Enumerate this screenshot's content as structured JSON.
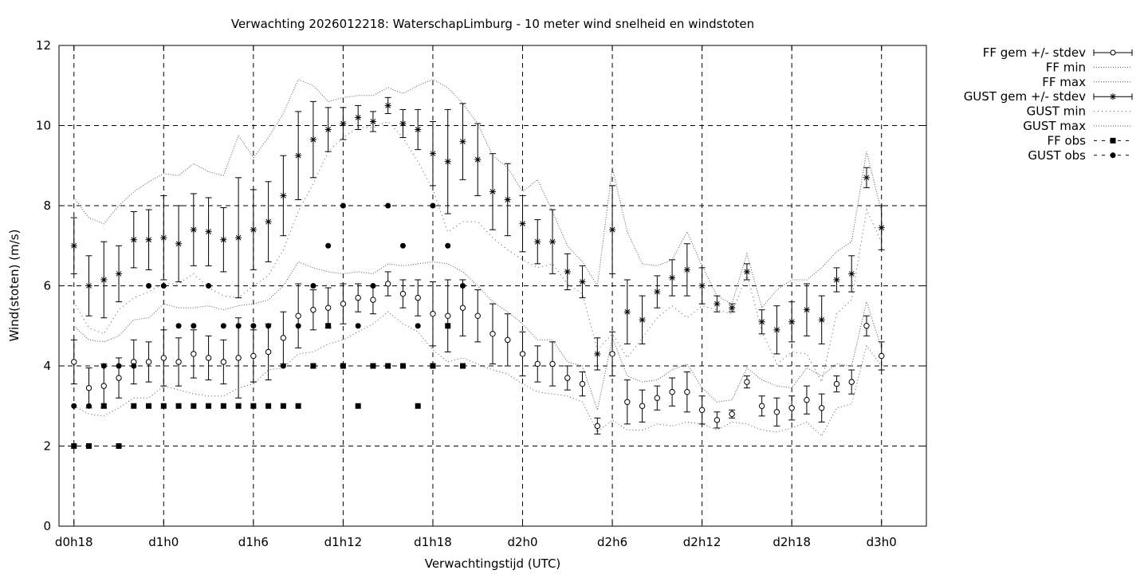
{
  "chart_data": {
    "type": "scatter",
    "title": "Verwachting 2026012218: WaterschapLimburg - 10 meter wind snelheid en windstoten",
    "xlabel": "Verwachtingstijd (UTC)",
    "ylabel": "Wind(stoten) (m/s)",
    "ylim": [
      0,
      12
    ],
    "yticks": [
      0,
      2,
      4,
      6,
      8,
      10,
      12
    ],
    "xlim_hours": [
      17,
      75
    ],
    "xticks": [
      {
        "hour": 18,
        "label": "d0h18"
      },
      {
        "hour": 24,
        "label": "d1h0"
      },
      {
        "hour": 30,
        "label": "d1h6"
      },
      {
        "hour": 36,
        "label": "d1h12"
      },
      {
        "hour": 42,
        "label": "d1h18"
      },
      {
        "hour": 48,
        "label": "d2h0"
      },
      {
        "hour": 54,
        "label": "d2h6"
      },
      {
        "hour": 60,
        "label": "d2h12"
      },
      {
        "hour": 66,
        "label": "d2h18"
      },
      {
        "hour": 72,
        "label": "d3h0"
      }
    ],
    "grid": true,
    "legend_position": "right",
    "x_hours": [
      18,
      19,
      20,
      21,
      22,
      23,
      24,
      25,
      26,
      27,
      28,
      29,
      30,
      31,
      32,
      33,
      34,
      35,
      36,
      37,
      38,
      39,
      40,
      41,
      42,
      43,
      44,
      45,
      46,
      47,
      48,
      49,
      50,
      51,
      52,
      53,
      54,
      55,
      56,
      57,
      58,
      59,
      60,
      61,
      62,
      63,
      64,
      65,
      66,
      67,
      68,
      69,
      70,
      71,
      72
    ],
    "series": [
      {
        "name": "FF gem +/- stdev",
        "mean": [
          4.1,
          3.45,
          3.5,
          3.7,
          4.1,
          4.1,
          4.2,
          4.1,
          4.3,
          4.2,
          4.1,
          4.2,
          4.25,
          4.35,
          4.7,
          5.25,
          5.4,
          5.45,
          5.55,
          5.7,
          5.65,
          6.05,
          5.8,
          5.7,
          5.3,
          5.25,
          5.45,
          5.25,
          4.8,
          4.65,
          4.3,
          4.05,
          4.05,
          3.7,
          3.55,
          2.5,
          4.3,
          3.1,
          3.0,
          3.2,
          3.35,
          3.35,
          2.9,
          2.65,
          2.8,
          3.6,
          3.0,
          2.85,
          2.95,
          3.15,
          2.95,
          3.55,
          3.6,
          5.0,
          4.25
        ],
        "stdev": [
          0.55,
          0.5,
          0.55,
          0.5,
          0.55,
          0.5,
          0.7,
          0.6,
          0.6,
          0.55,
          0.55,
          1.0,
          0.65,
          0.7,
          0.65,
          0.8,
          0.5,
          0.5,
          0.5,
          0.35,
          0.35,
          0.3,
          0.35,
          0.45,
          0.8,
          0.9,
          0.7,
          0.65,
          0.75,
          0.65,
          0.55,
          0.45,
          0.55,
          0.3,
          0.3,
          0.2,
          0.55,
          0.55,
          0.4,
          0.3,
          0.35,
          0.5,
          0.35,
          0.2,
          0.1,
          0.15,
          0.25,
          0.35,
          0.3,
          0.35,
          0.35,
          0.2,
          0.3,
          0.25,
          0.35
        ]
      },
      {
        "name": "FF min",
        "values": [
          3.0,
          2.8,
          2.75,
          2.95,
          3.2,
          3.2,
          3.5,
          3.4,
          3.3,
          3.25,
          3.25,
          3.45,
          3.55,
          3.9,
          3.95,
          4.3,
          4.35,
          4.55,
          4.65,
          4.85,
          5.05,
          5.35,
          5.05,
          4.85,
          4.4,
          4.1,
          4.2,
          4.05,
          3.9,
          3.8,
          3.55,
          3.35,
          3.3,
          3.25,
          3.1,
          2.35,
          2.65,
          2.4,
          2.4,
          2.55,
          2.5,
          2.6,
          2.55,
          2.4,
          2.6,
          2.55,
          2.4,
          2.35,
          2.45,
          2.6,
          2.25,
          2.95,
          3.05,
          4.5,
          4.0
        ]
      },
      {
        "name": "FF max",
        "values": [
          5.0,
          4.65,
          4.6,
          4.75,
          5.15,
          5.2,
          5.55,
          5.45,
          5.45,
          5.5,
          5.4,
          5.5,
          5.55,
          5.65,
          6.0,
          6.6,
          6.45,
          6.35,
          6.3,
          6.35,
          6.3,
          6.55,
          6.5,
          6.55,
          6.6,
          6.55,
          6.35,
          6.0,
          5.6,
          5.35,
          5.05,
          4.65,
          4.65,
          4.1,
          4.0,
          2.9,
          4.7,
          3.75,
          3.6,
          3.65,
          3.9,
          4.05,
          3.45,
          3.1,
          3.15,
          3.95,
          3.65,
          3.5,
          3.45,
          3.95,
          3.75,
          4.05,
          4.0,
          5.6,
          4.45
        ]
      },
      {
        "name": "GUST gem +/- stdev",
        "mean": [
          7.0,
          6.0,
          6.15,
          6.3,
          7.15,
          7.15,
          7.2,
          7.05,
          7.4,
          7.35,
          7.15,
          7.2,
          7.4,
          7.6,
          8.25,
          9.25,
          9.65,
          9.9,
          10.05,
          10.2,
          10.1,
          10.5,
          10.05,
          9.9,
          9.3,
          9.1,
          9.6,
          9.15,
          8.35,
          8.15,
          7.55,
          7.1,
          7.1,
          6.35,
          6.1,
          4.3,
          7.4,
          5.35,
          5.15,
          5.85,
          6.2,
          6.4,
          6.0,
          5.55,
          5.45,
          6.35,
          5.1,
          4.9,
          5.1,
          5.4,
          5.15,
          6.15,
          6.3,
          8.7,
          7.45
        ],
        "stdev": [
          0.7,
          0.75,
          0.95,
          0.7,
          0.7,
          0.75,
          1.05,
          0.95,
          0.9,
          0.85,
          0.8,
          1.5,
          1.0,
          1.0,
          1.0,
          1.1,
          0.95,
          0.55,
          0.4,
          0.3,
          0.25,
          0.2,
          0.35,
          0.5,
          0.8,
          1.3,
          0.95,
          0.9,
          0.95,
          0.9,
          0.7,
          0.55,
          0.8,
          0.45,
          0.4,
          0.4,
          1.1,
          0.8,
          0.6,
          0.4,
          0.45,
          0.65,
          0.45,
          0.2,
          0.1,
          0.2,
          0.3,
          0.6,
          0.5,
          0.65,
          0.6,
          0.3,
          0.45,
          0.25,
          0.55
        ]
      },
      {
        "name": "GUST min",
        "values": [
          5.6,
          4.95,
          4.8,
          5.4,
          5.7,
          5.85,
          6.05,
          6.05,
          6.3,
          5.95,
          5.75,
          5.7,
          6.0,
          6.25,
          6.9,
          7.85,
          8.55,
          9.35,
          9.7,
          9.95,
          9.95,
          10.1,
          9.7,
          9.1,
          8.4,
          7.35,
          7.6,
          7.6,
          7.2,
          6.9,
          6.65,
          6.45,
          6.55,
          6.05,
          5.8,
          4.4,
          4.8,
          4.2,
          4.7,
          5.2,
          5.5,
          5.2,
          5.5,
          5.4,
          5.3,
          6.3,
          4.85,
          4.05,
          4.35,
          4.3,
          3.6,
          5.3,
          5.65,
          7.9,
          7.1
        ]
      },
      {
        "name": "GUST max",
        "values": [
          8.2,
          7.7,
          7.55,
          8.0,
          8.35,
          8.6,
          8.8,
          8.75,
          9.05,
          8.85,
          8.75,
          9.75,
          9.2,
          9.7,
          10.3,
          11.15,
          11.0,
          10.6,
          10.7,
          10.75,
          10.75,
          10.95,
          10.8,
          11.0,
          11.15,
          10.95,
          10.55,
          10.05,
          9.25,
          8.95,
          8.35,
          8.65,
          7.85,
          7.0,
          6.6,
          6.0,
          8.95,
          7.35,
          6.55,
          6.5,
          6.65,
          7.35,
          6.5,
          5.75,
          5.55,
          6.8,
          5.45,
          5.9,
          6.15,
          6.15,
          6.45,
          6.85,
          7.1,
          9.35,
          7.85
        ]
      },
      {
        "name": "FF obs",
        "values": [
          2,
          2,
          3,
          2,
          3,
          3,
          3,
          3,
          3,
          3,
          3,
          3,
          3,
          3,
          3,
          3,
          4,
          5,
          4,
          3,
          4,
          4,
          4,
          3,
          4,
          5,
          4,
          null,
          null,
          null,
          null,
          null,
          null,
          null,
          null,
          null,
          null,
          null,
          null,
          null,
          null,
          null,
          null,
          null,
          null,
          null,
          null,
          null,
          null,
          null,
          null,
          null,
          null,
          null,
          null
        ]
      },
      {
        "name": "GUST obs",
        "values": [
          3,
          3,
          4,
          4,
          4,
          6,
          6,
          5,
          5,
          6,
          5,
          5,
          5,
          5,
          4,
          5,
          6,
          7,
          8,
          5,
          6,
          8,
          7,
          5,
          8,
          7,
          6,
          null,
          null,
          null,
          null,
          null,
          null,
          null,
          null,
          null,
          null,
          null,
          null,
          null,
          null,
          null,
          null,
          null,
          null,
          null,
          null,
          null,
          null,
          null,
          null,
          null,
          null,
          null,
          null
        ]
      }
    ]
  }
}
